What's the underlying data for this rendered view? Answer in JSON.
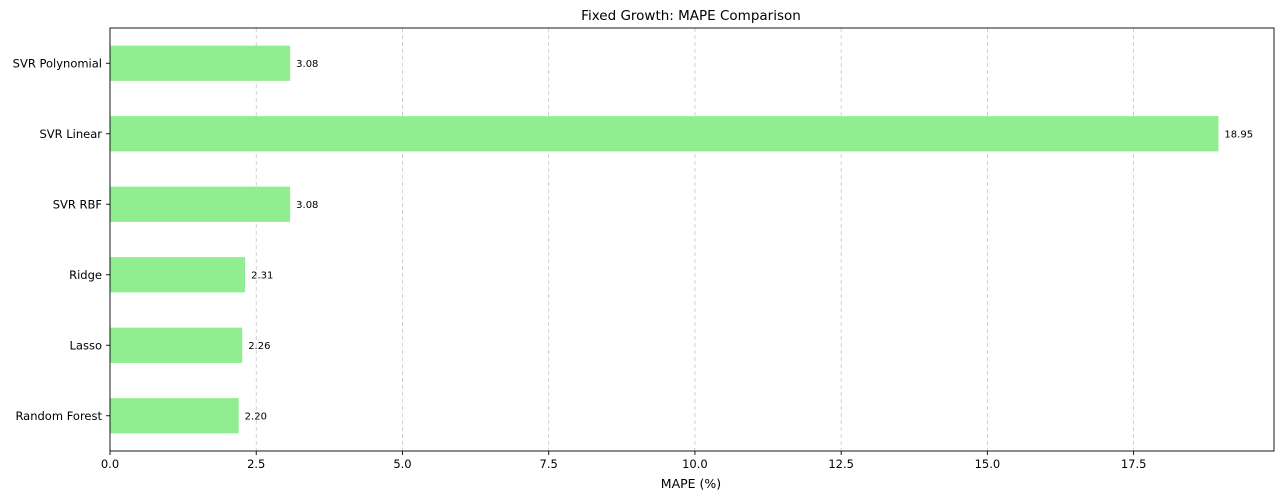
{
  "chart_data": {
    "type": "bar",
    "orientation": "horizontal",
    "title": "Fixed Growth: MAPE Comparison",
    "xlabel": "MAPE (%)",
    "ylabel": "",
    "categories": [
      "Random Forest",
      "Lasso",
      "Ridge",
      "SVR RBF",
      "SVR Linear",
      "SVR Polynomial"
    ],
    "values": [
      2.2,
      2.26,
      2.31,
      3.08,
      18.95,
      3.08
    ],
    "data_labels": [
      "2.20",
      "2.26",
      "2.31",
      "3.08",
      "18.95",
      "3.08"
    ],
    "xlim": [
      0,
      19.9
    ],
    "x_ticks": [
      0.0,
      2.5,
      5.0,
      7.5,
      10.0,
      12.5,
      15.0,
      17.5
    ],
    "x_tick_labels": [
      "0.0",
      "2.5",
      "5.0",
      "7.5",
      "10.0",
      "12.5",
      "15.0",
      "17.5"
    ],
    "grid": "x-dashed",
    "legend": "none",
    "colors": {
      "bar": "#90ee90",
      "grid": "#b0b0b0",
      "axis": "#000000"
    }
  }
}
